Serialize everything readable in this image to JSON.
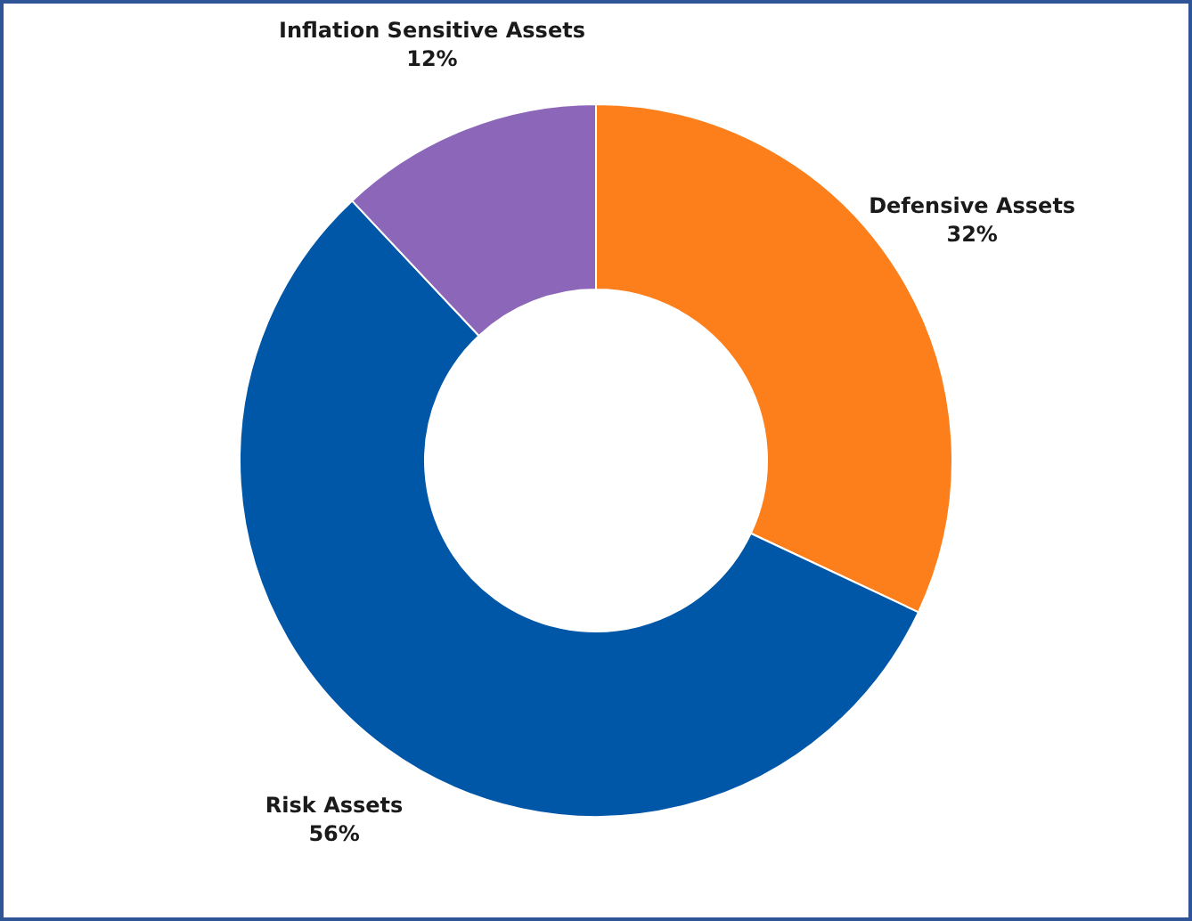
{
  "chart_data": {
    "type": "donut",
    "categories": [
      "Defensive Assets",
      "Risk Assets",
      "Inflation Sensitive Assets"
    ],
    "values": [
      32,
      56,
      12
    ],
    "colors": [
      "#fd7f1b",
      "#0057a8",
      "#8c67b9"
    ],
    "value_labels": [
      "32%",
      "56%",
      "12%"
    ],
    "legend": false
  }
}
